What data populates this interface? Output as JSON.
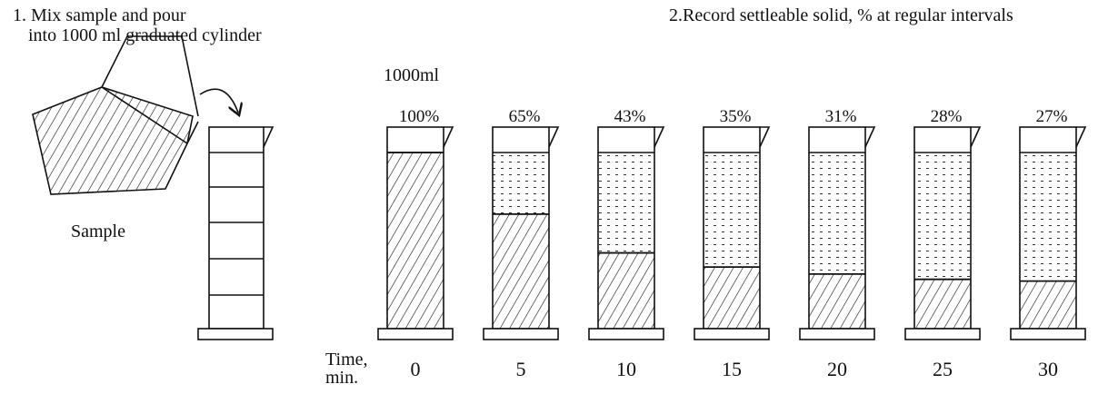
{
  "step1": {
    "line1": "1. Mix sample and pour",
    "line2": "into 1000 ml graduated cylinder"
  },
  "step2": "2.Record settleable solid, % at regular intervals",
  "sample_label": "Sample",
  "volume_label": "1000ml",
  "time_label": {
    "line1": "Time,",
    "line2": "min."
  },
  "cylinders": [
    {
      "time": "0",
      "percent": "100%",
      "settled_fraction": 1.0
    },
    {
      "time": "5",
      "percent": "65%",
      "settled_fraction": 0.65
    },
    {
      "time": "10",
      "percent": "43%",
      "settled_fraction": 0.43
    },
    {
      "time": "15",
      "percent": "35%",
      "settled_fraction": 0.35
    },
    {
      "time": "20",
      "percent": "31%",
      "settled_fraction": 0.31
    },
    {
      "time": "25",
      "percent": "28%",
      "settled_fraction": 0.28
    },
    {
      "time": "30",
      "percent": "27%",
      "settled_fraction": 0.27
    }
  ]
}
